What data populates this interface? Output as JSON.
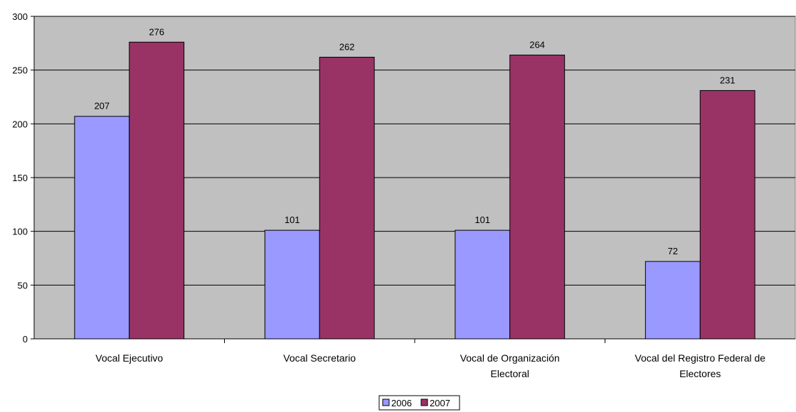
{
  "chart_data": {
    "type": "bar",
    "categories": [
      [
        "Vocal Ejecutivo"
      ],
      [
        "Vocal Secretario"
      ],
      [
        "Vocal de Organización",
        "Electoral"
      ],
      [
        "Vocal del Registro Federal de",
        "Electores"
      ]
    ],
    "series": [
      {
        "name": "2006",
        "values": [
          207,
          101,
          101,
          72
        ],
        "color": "#9999ff"
      },
      {
        "name": "2007",
        "values": [
          276,
          262,
          264,
          231
        ],
        "color": "#993366"
      }
    ],
    "ylim": [
      0,
      300
    ],
    "yticks": [
      0,
      50,
      100,
      150,
      200,
      250,
      300
    ],
    "grid": true,
    "legend": "bottom",
    "plot_background": "#c0c0c0"
  }
}
